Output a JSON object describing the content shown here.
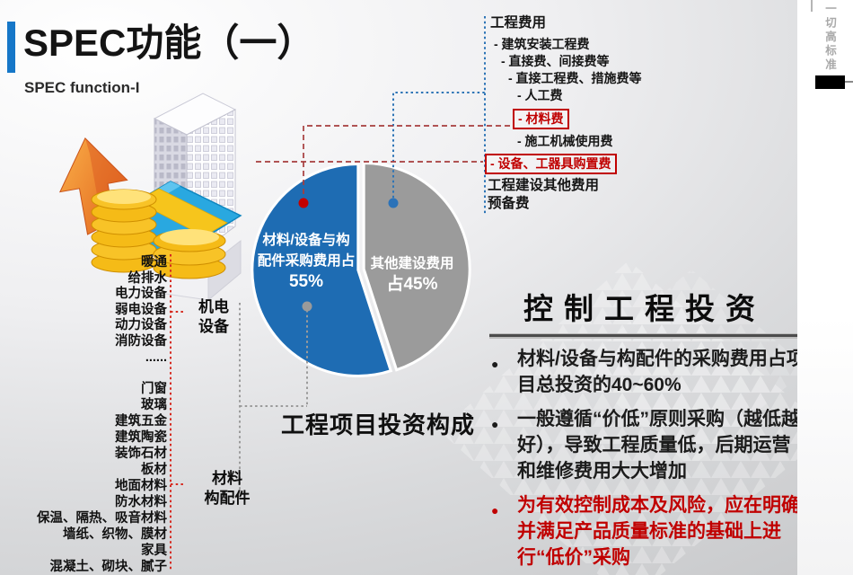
{
  "slide": {
    "title": "SPEC功能（一）",
    "subtitle": "SPEC function-I",
    "side_note": "一切高标准"
  },
  "colors": {
    "accent_red": "#c00000",
    "bright_red": "#d62a20",
    "dark_red_line": "#a63d3d",
    "pie_blue": "#1e6cb3",
    "pie_gray": "#9b9b9b",
    "line_blue": "#2e75b6",
    "title_bar_blue": "#1677c8"
  },
  "fee_tree": {
    "items": [
      {
        "label": "工程费用",
        "style": "bold"
      },
      {
        "label": "- 建筑安装工程费",
        "style": "normal"
      },
      {
        "label": "- 直接费、间接费等",
        "style": "normal"
      },
      {
        "label": "- 直接工程费、措施费等",
        "style": "normal"
      },
      {
        "label": "- 人工费",
        "style": "normal"
      },
      {
        "label": "- 材料费",
        "style": "red-box"
      },
      {
        "label": "- 施工机械使用费",
        "style": "normal"
      },
      {
        "label": "- 设备、工器具购置费",
        "style": "red-box"
      },
      {
        "label": "工程建设其他费用",
        "style": "bold"
      },
      {
        "label": "预备费",
        "style": "bold"
      }
    ]
  },
  "left_groups": [
    {
      "label_lines": [
        "机电",
        "设备"
      ],
      "items": [
        "暖通",
        "给排水",
        "电力设备",
        "弱电设备",
        "动力设备",
        "消防设备",
        "......"
      ]
    },
    {
      "label_lines": [
        "材料",
        "构配件"
      ],
      "items": [
        "门窗",
        "玻璃",
        "建筑五金",
        "建筑陶瓷",
        "装饰石材",
        "板材",
        "地面材料",
        "防水材料",
        "保温、隔热、吸音材料",
        "墙纸、织物、膜材",
        "家具",
        "混凝土、砌块、腻子"
      ]
    }
  ],
  "chart_data": {
    "type": "pie",
    "title": "工程项目投资构成",
    "legend_position": "inside",
    "slices": [
      {
        "name": "材料/设备与构配件采购费用",
        "value": 55,
        "color": "#1e6cb3",
        "label_lines": [
          "材料/设备与构",
          "配件采购费用占"
        ],
        "pct_label": "55%"
      },
      {
        "name": "其他建设费用",
        "value": 45,
        "color": "#9b9b9b",
        "label_lines": [
          "其他建设费用"
        ],
        "pct_label": "占45%"
      }
    ]
  },
  "right_panel": {
    "heading": "控制工程投资",
    "bullets": [
      {
        "text": "材料/设备与构配件的采购费用占项目总投资的40~60%",
        "emphasis": "normal"
      },
      {
        "text": "一般遵循“价低”原则采购（越低越好），导致工程质量低，后期运营和维修费用大大增加",
        "emphasis": "normal"
      },
      {
        "text": "为有效控制成本及风险，应在明确并满足产品质量标准的基础上进行“低价”采购",
        "emphasis": "red-bold"
      }
    ]
  }
}
